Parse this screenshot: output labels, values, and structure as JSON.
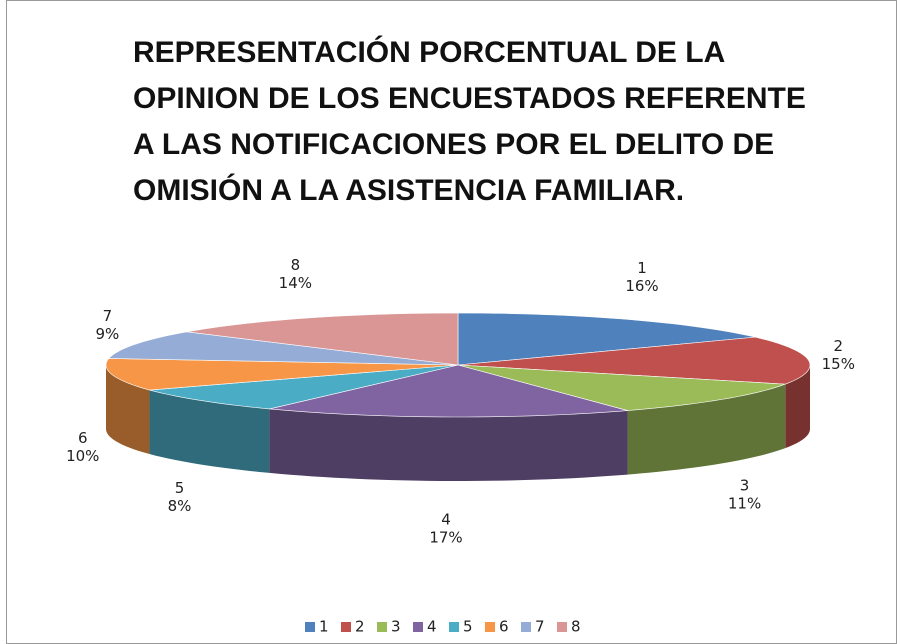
{
  "chart_data": {
    "type": "pie",
    "title": "REPRESENTACIÓN PORCENTUAL DE LA OPINION DE LOS ENCUESTADOS REFERENTE A LAS NOTIFICACIONES POR EL DELITO DE OMISIÓN A LA ASISTENCIA FAMILIAR.",
    "categories": [
      "1",
      "2",
      "3",
      "4",
      "5",
      "6",
      "7",
      "8"
    ],
    "values": [
      16,
      15,
      11,
      17,
      8,
      10,
      9,
      14
    ],
    "value_labels": [
      "16%",
      "15%",
      "11%",
      "17%",
      "8%",
      "10%",
      "9%",
      "14%"
    ],
    "colors": [
      "#4f81bd",
      "#c0504d",
      "#9bbb59",
      "#8064a2",
      "#4bacc6",
      "#f79646",
      "#95add6",
      "#d99694"
    ],
    "legend": "bottom"
  }
}
